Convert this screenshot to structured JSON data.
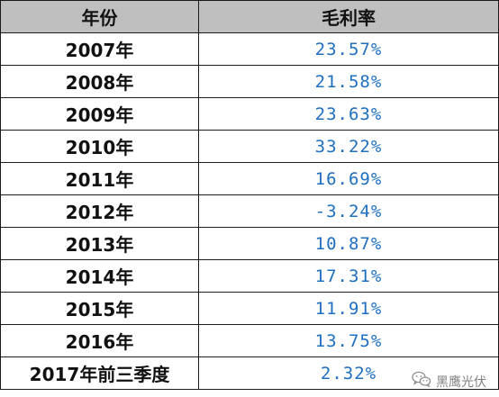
{
  "table": {
    "headers": {
      "year": "年份",
      "margin": "毛利率"
    },
    "rows": [
      {
        "year": "2007年",
        "margin": "23.57%"
      },
      {
        "year": "2008年",
        "margin": "21.58%"
      },
      {
        "year": "2009年",
        "margin": "23.63%"
      },
      {
        "year": "2010年",
        "margin": "33.22%"
      },
      {
        "year": "2011年",
        "margin": "16.69%"
      },
      {
        "year": "2012年",
        "margin": "-3.24%"
      },
      {
        "year": "2013年",
        "margin": "10.87%"
      },
      {
        "year": "2014年",
        "margin": "17.31%"
      },
      {
        "year": "2015年",
        "margin": "11.91%"
      },
      {
        "year": "2016年",
        "margin": "13.75%"
      },
      {
        "year": "2017年前三季度",
        "margin": "2.32%"
      }
    ]
  },
  "watermark": {
    "text": "黑鹰光伏",
    "icon": "wechat-icon"
  },
  "colors": {
    "header_bg": "#bfbfbf",
    "value_text": "#1f6fc0"
  }
}
